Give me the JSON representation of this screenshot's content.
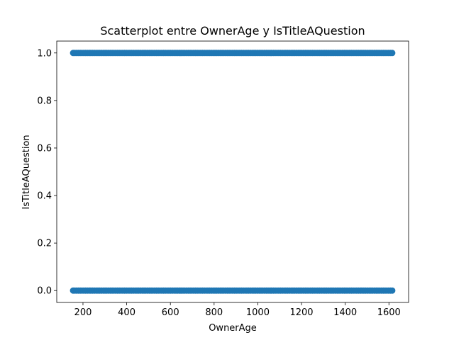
{
  "chart_data": {
    "type": "scatter",
    "title": "Scatterplot entre OwnerAge y IsTitleAQuestion",
    "xlabel": "OwnerAge",
    "ylabel": "IsTitleAQuestion",
    "xlim": [
      80,
      1690
    ],
    "ylim": [
      -0.05,
      1.05
    ],
    "x_ticks": [
      200,
      400,
      600,
      800,
      1000,
      1200,
      1400,
      1600
    ],
    "x_tick_labels": [
      "200",
      "400",
      "600",
      "800",
      "1000",
      "1200",
      "1400",
      "1600"
    ],
    "y_ticks": [
      0.0,
      0.2,
      0.4,
      0.6,
      0.8,
      1.0
    ],
    "y_tick_labels": [
      "0.0",
      "0.2",
      "0.4",
      "0.6",
      "0.8",
      "1.0"
    ],
    "grid": false,
    "legend": "none",
    "series": [
      {
        "x_range": [
          155,
          1615
        ],
        "y_values": [
          0,
          1
        ],
        "color": "#1f77b4"
      }
    ]
  }
}
